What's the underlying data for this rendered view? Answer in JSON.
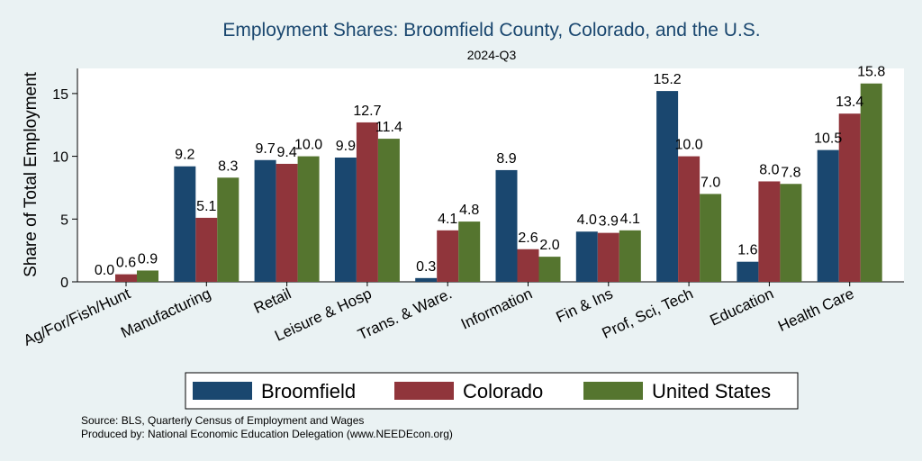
{
  "chart_data": {
    "type": "bar",
    "title": "Employment Shares: Broomfield County, Colorado, and the U.S.",
    "subtitle": "2024-Q3",
    "xlabel": "",
    "ylabel": "Share of Total Employment",
    "ylim": [
      0,
      17
    ],
    "yticks": [
      0,
      5,
      10,
      15
    ],
    "grid": false,
    "legend_position": "bottom",
    "categories": [
      "Ag/For/Fish/Hunt",
      "Manufacturing",
      "Retail",
      "Leisure & Hosp",
      "Trans. & Ware.",
      "Information",
      "Fin & Ins",
      "Prof, Sci, Tech",
      "Education",
      "Health Care"
    ],
    "series": [
      {
        "name": "Broomfield",
        "color": "#1a476f",
        "values": [
          0.0,
          9.2,
          9.7,
          9.9,
          0.3,
          8.9,
          4.0,
          15.2,
          1.6,
          10.5
        ],
        "labels": [
          "0.0",
          "9.2",
          "9.7",
          "9.9",
          "0.3",
          "8.9",
          "4.0",
          "15.2",
          "1.6",
          "10.5"
        ]
      },
      {
        "name": "Colorado",
        "color": "#90353b",
        "values": [
          0.6,
          5.1,
          9.4,
          12.7,
          4.1,
          2.6,
          3.9,
          10.0,
          8.0,
          13.4
        ],
        "labels": [
          "0.6",
          "5.1",
          "9.4",
          "12.7",
          "4.1",
          "2.6",
          "3.9",
          "10.0",
          "8.0",
          "13.4"
        ]
      },
      {
        "name": "United States",
        "color": "#55752f",
        "values": [
          0.9,
          8.3,
          10.0,
          11.4,
          4.8,
          2.0,
          4.1,
          7.0,
          7.8,
          15.8
        ],
        "labels": [
          "0.9",
          "8.3",
          "10.0",
          "11.4",
          "4.8",
          "2.0",
          "4.1",
          "7.0",
          "7.8",
          "15.8"
        ]
      }
    ]
  },
  "colors": {
    "background": "#eaf2f3",
    "plot_background": "#ffffff",
    "title": "#1a476f"
  },
  "notes": {
    "source": "Source: BLS, Quarterly Census of Employment and Wages",
    "produced_by": "Produced by: National Economic Education Delegation (www.NEEDEcon.org)"
  }
}
